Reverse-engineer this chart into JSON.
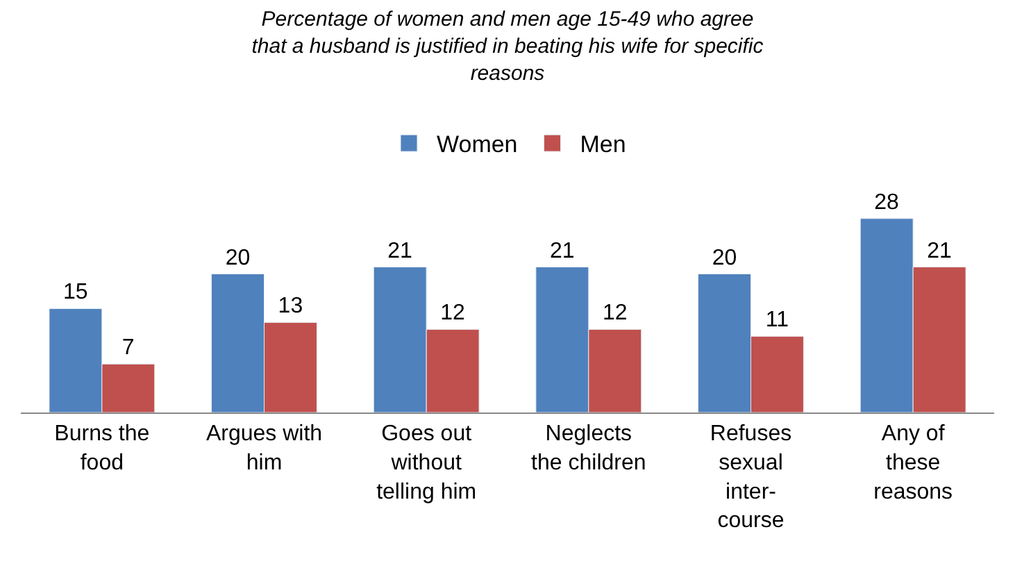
{
  "chart_data": {
    "type": "bar",
    "title": "Percentage of women and men age 15-49 who agree\nthat a husband is justified in beating his wife for specific\nreasons",
    "categories": [
      "Burns the\nfood",
      "Argues with\nhim",
      "Goes out\nwithout\ntelling him",
      "Neglects\nthe children",
      "Refuses\nsexual\ninter-\ncourse",
      "Any of\nthese\nreasons"
    ],
    "series": [
      {
        "name": "Women",
        "color": "#4f81bd",
        "values": [
          15,
          20,
          21,
          21,
          20,
          28
        ]
      },
      {
        "name": "Men",
        "color": "#c0504d",
        "values": [
          7,
          13,
          12,
          12,
          11,
          21
        ]
      }
    ],
    "data_labels": true,
    "legend": "top"
  }
}
